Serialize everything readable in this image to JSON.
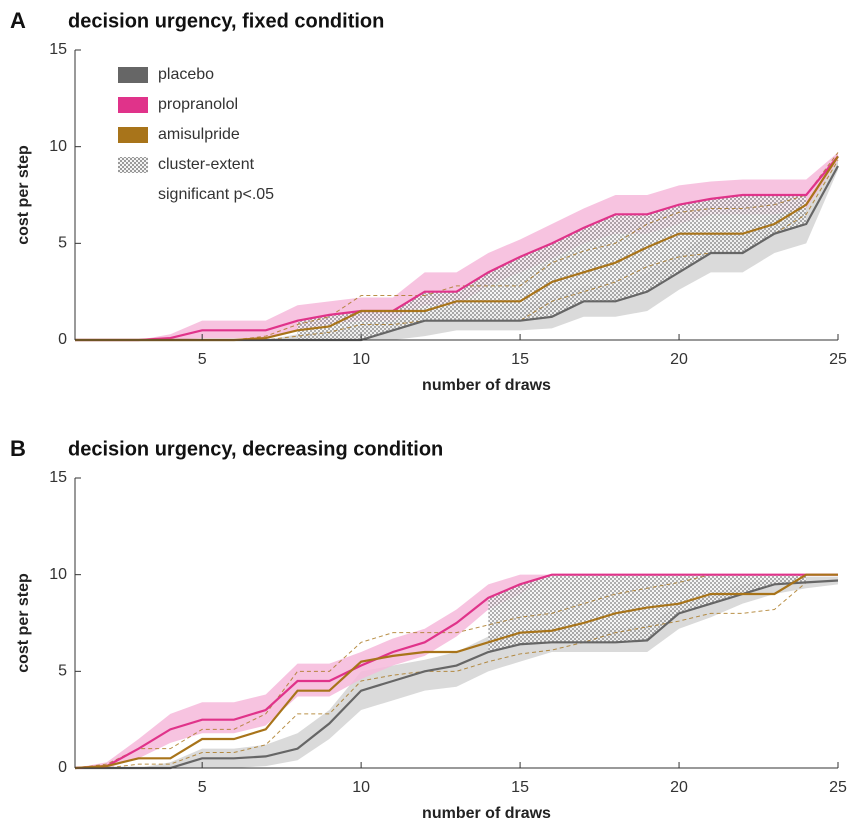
{
  "chart_data": [
    {
      "type": "line",
      "panel": "A",
      "title": "decision urgency, fixed condition",
      "xlabel": "number of draws",
      "ylabel": "cost per step",
      "x": [
        1,
        2,
        3,
        4,
        5,
        6,
        7,
        8,
        9,
        10,
        11,
        12,
        13,
        14,
        15,
        16,
        17,
        18,
        19,
        20,
        21,
        22,
        23,
        24,
        25
      ],
      "xlim": [
        1,
        25
      ],
      "xticks": [
        5,
        10,
        15,
        20,
        25
      ],
      "ylim": [
        0,
        15
      ],
      "yticks": [
        0,
        5,
        10,
        15
      ],
      "legend": "upper left",
      "series": [
        {
          "name": "placebo",
          "color": "#666666",
          "band_color": "#d3d3d3",
          "band": "fill",
          "values": [
            0,
            0,
            0,
            0,
            0,
            0,
            0,
            0,
            0,
            0,
            0.5,
            1,
            1,
            1,
            1,
            1.2,
            2,
            2,
            2.5,
            3.5,
            4.5,
            4.5,
            5.5,
            6,
            9
          ],
          "lower": [
            0,
            0,
            0,
            0,
            0,
            0,
            0,
            0,
            0,
            0,
            0,
            0.2,
            0.5,
            0.5,
            0.5,
            0.6,
            1.2,
            1.2,
            1.5,
            2.6,
            3.5,
            3.5,
            4.5,
            5,
            8.8
          ],
          "upper": [
            0,
            0,
            0,
            0,
            0,
            0,
            0,
            0.3,
            0.5,
            0.8,
            1,
            1.5,
            1.8,
            1.8,
            1.8,
            2.2,
            2.8,
            2.8,
            3.5,
            4.5,
            5.5,
            5.5,
            6.5,
            7,
            9.3
          ]
        },
        {
          "name": "propranolol",
          "color": "#e0338a",
          "band_color": "#f6b9da",
          "band": "fill",
          "values": [
            0,
            0,
            0,
            0.1,
            0.5,
            0.5,
            0.5,
            1,
            1.3,
            1.5,
            1.5,
            2.5,
            2.5,
            3.5,
            4.3,
            5,
            5.8,
            6.5,
            6.5,
            7,
            7.3,
            7.5,
            7.5,
            7.5,
            9.5
          ],
          "lower": [
            0,
            0,
            0,
            0,
            0.1,
            0.1,
            0.1,
            0.5,
            0.8,
            1,
            1,
            1.8,
            1.8,
            2.8,
            3.5,
            4.2,
            5,
            5.5,
            5.5,
            6,
            6.5,
            6.5,
            6.5,
            6.8,
            9.3
          ],
          "upper": [
            0,
            0,
            0,
            0.3,
            1,
            1,
            1,
            1.8,
            2,
            2.2,
            2.2,
            3.5,
            3.5,
            4.5,
            5.2,
            6,
            6.8,
            7.5,
            7.5,
            8,
            8.2,
            8.3,
            8.3,
            8.3,
            9.7
          ]
        },
        {
          "name": "amisulpride",
          "color": "#a8741a",
          "band": "dashed",
          "values": [
            0,
            0,
            0,
            0,
            0,
            0,
            0.1,
            0.5,
            0.7,
            1.5,
            1.5,
            1.5,
            2,
            2,
            2,
            3,
            3.5,
            4,
            4.8,
            5.5,
            5.5,
            5.5,
            6,
            7,
            9.5
          ],
          "lower": [
            0,
            0,
            0,
            0,
            0,
            0,
            0,
            0.2,
            0.4,
            0.8,
            0.8,
            1,
            1,
            1,
            1,
            2,
            2.5,
            3,
            3.8,
            4.3,
            4.5,
            4.5,
            5.5,
            6.5,
            9.3
          ],
          "upper": [
            0,
            0,
            0,
            0,
            0,
            0,
            0.2,
            0.8,
            1.2,
            2.3,
            2.3,
            2.3,
            2.8,
            2.8,
            2.8,
            4,
            4.6,
            5,
            6,
            6.6,
            6.8,
            6.8,
            7,
            7.5,
            9.7
          ]
        }
      ],
      "cluster": {
        "label": [
          "cluster-extent",
          "significant p<.05"
        ],
        "x": [
          8,
          24
        ]
      }
    },
    {
      "type": "line",
      "panel": "B",
      "title": "decision urgency, decreasing condition",
      "xlabel": "number of draws",
      "ylabel": "cost per step",
      "x": [
        1,
        2,
        3,
        4,
        5,
        6,
        7,
        8,
        9,
        10,
        11,
        12,
        13,
        14,
        15,
        16,
        17,
        18,
        19,
        20,
        21,
        22,
        23,
        24,
        25
      ],
      "xlim": [
        1,
        25
      ],
      "xticks": [
        5,
        10,
        15,
        20,
        25
      ],
      "ylim": [
        0,
        15
      ],
      "yticks": [
        0,
        5,
        10,
        15
      ],
      "series": [
        {
          "color": "#666666",
          "band_color": "#d3d3d3",
          "band": "fill",
          "values": [
            0,
            0,
            0,
            0,
            0.5,
            0.5,
            0.6,
            1,
            2.3,
            4,
            4.5,
            5,
            5.3,
            6,
            6.4,
            6.5,
            6.5,
            6.5,
            6.6,
            8,
            8.5,
            9,
            9.5,
            9.6,
            9.7
          ],
          "lower": [
            0,
            0,
            0,
            0,
            0,
            0,
            0.1,
            0.4,
            1.5,
            3,
            3.5,
            4,
            4.2,
            5,
            5.5,
            6,
            6,
            6,
            6,
            7.2,
            7.8,
            8.5,
            9,
            9.3,
            9.5
          ],
          "upper": [
            0,
            0,
            0,
            0.3,
            1,
            1,
            1.2,
            1.8,
            3,
            5,
            5.3,
            5.6,
            6,
            6.8,
            7.2,
            7.2,
            7.2,
            7.2,
            7.4,
            8.5,
            9,
            9.5,
            9.8,
            9.9,
            9.9
          ]
        },
        {
          "color": "#e0338a",
          "band_color": "#f6b9da",
          "band": "fill",
          "values": [
            0,
            0.1,
            1,
            2,
            2.5,
            2.5,
            3,
            4.5,
            4.5,
            5.3,
            6,
            6.5,
            7.5,
            8.8,
            9.5,
            10,
            10,
            10,
            10,
            10,
            10,
            10,
            10,
            10,
            10
          ],
          "lower": [
            0,
            0,
            0.5,
            1.3,
            1.8,
            1.8,
            2.2,
            3.7,
            3.7,
            4.6,
            5.3,
            5.8,
            6.8,
            8.2,
            9,
            10,
            10,
            10,
            10,
            10,
            10,
            10,
            10,
            10,
            10
          ],
          "upper": [
            0,
            0.3,
            1.5,
            2.8,
            3.4,
            3.4,
            3.8,
            5.4,
            5.4,
            6,
            6.7,
            7.2,
            8.2,
            9.5,
            10,
            10,
            10,
            10,
            10,
            10,
            10,
            10,
            10,
            10,
            10
          ]
        },
        {
          "color": "#a8741a",
          "band": "dashed",
          "values": [
            0,
            0.1,
            0.5,
            0.5,
            1.5,
            1.5,
            2,
            4,
            4,
            5.5,
            5.8,
            6,
            6,
            6.5,
            7,
            7.1,
            7.5,
            8,
            8.3,
            8.5,
            9,
            9,
            9,
            10,
            10
          ],
          "lower": [
            0,
            0,
            0.2,
            0.2,
            0.8,
            0.8,
            1.2,
            2.8,
            2.8,
            4.5,
            4.8,
            5,
            5,
            5.5,
            5.9,
            6.1,
            6.5,
            7,
            7.3,
            7.6,
            8,
            8,
            8.2,
            9.6,
            9.7
          ],
          "upper": [
            0,
            0.2,
            1,
            1,
            2,
            2,
            2.8,
            5,
            5,
            6.5,
            7,
            7,
            7,
            7.4,
            7.8,
            8,
            8.5,
            9,
            9.3,
            9.6,
            10,
            10,
            10,
            10,
            10
          ]
        }
      ],
      "cluster": {
        "x": [
          14,
          24
        ]
      }
    }
  ]
}
